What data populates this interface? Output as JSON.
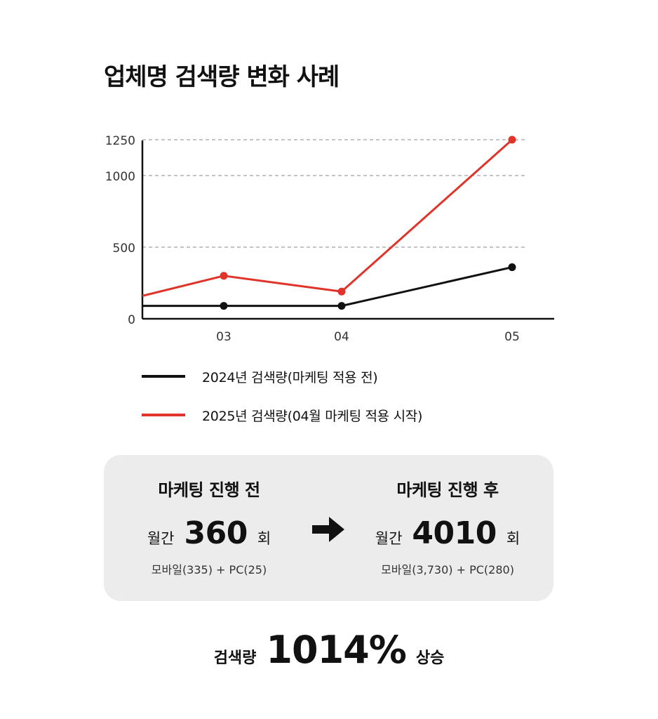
{
  "title": "업체명 검색량 변화 사례",
  "chart_data": {
    "type": "line",
    "categories": [
      "03",
      "04",
      "05"
    ],
    "yticks": [
      0,
      500,
      1000,
      1250
    ],
    "ylim": [
      0,
      1250
    ],
    "grid": true,
    "series": [
      {
        "name": "2024년 검색량(마케팅 적용 전)",
        "color": "#111111",
        "start_value": 90,
        "values": [
          90,
          90,
          360
        ]
      },
      {
        "name": "2025년 검색량(04월 마케팅 적용 시작)",
        "color": "#e0342b",
        "start_value": 160,
        "values": [
          300,
          190,
          1250
        ]
      }
    ]
  },
  "compare": {
    "before": {
      "heading": "마케팅 진행 전",
      "label": "월간",
      "value": "360",
      "unit": "회",
      "breakdown": "모바일(335) + PC(25)"
    },
    "arrow_icon": "right-arrow-icon",
    "after": {
      "heading": "마케팅 진행 후",
      "label": "월간",
      "value": "4010",
      "unit": "회",
      "breakdown": "모바일(3,730) + PC(280)"
    }
  },
  "summary": {
    "label": "검색량",
    "value": "1014%",
    "unit": "상승"
  }
}
